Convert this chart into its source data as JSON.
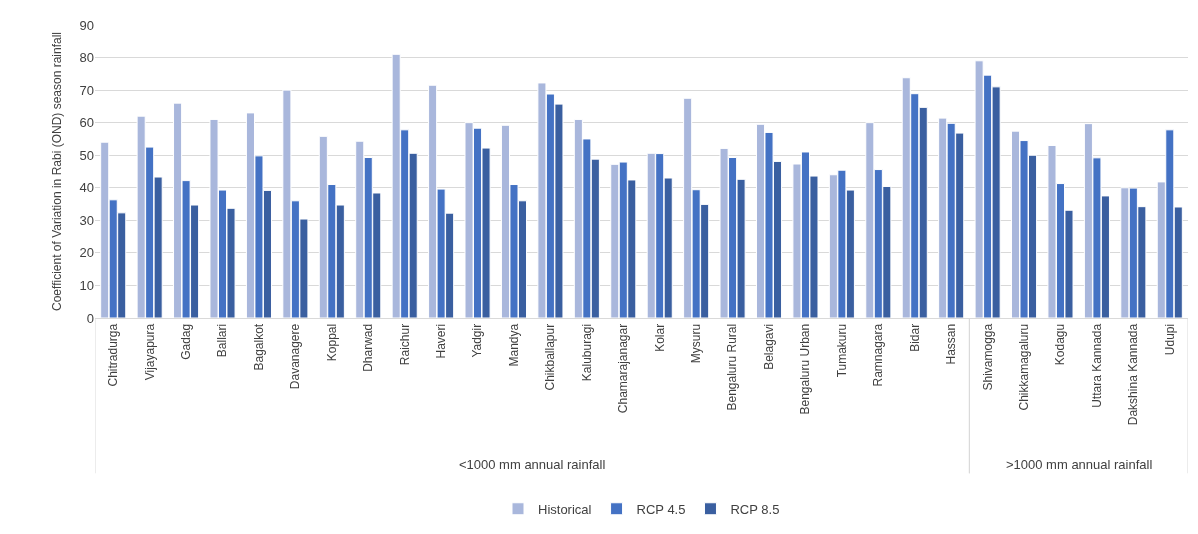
{
  "chart_data": {
    "type": "bar",
    "ylabel": "Coefficient of Variation in Rabi (OND) season rainfall",
    "categories": [
      "Chitradurga",
      "Vijayapura",
      "Gadag",
      "Ballari",
      "Bagalkot",
      "Davanagere",
      "Koppal",
      "Dharwad",
      "Raichur",
      "Haveri",
      "Yadgir",
      "Mandya",
      "Chikballapur",
      "Kaluburagi",
      "Chamarajanagar",
      "Kolar",
      "Mysuru",
      "Bengaluru Rural",
      "Belagavi",
      "Bengaluru Urban",
      "Tumakuru",
      "Ramnagara",
      "Bidar",
      "Hassan",
      "Shivamogga",
      "Chikkamagaluru",
      "Kodagu",
      "Uttara Kannada",
      "Dakshina Kannada",
      "Udupi"
    ],
    "series": [
      {
        "name": "Historical",
        "color": "#a9b7dc",
        "values": [
          54,
          62,
          66,
          61,
          63,
          70,
          55.8,
          54.3,
          81,
          71.5,
          60,
          59.2,
          72.2,
          61,
          47.2,
          50.6,
          67.5,
          52.1,
          59.5,
          47.3,
          44,
          60,
          73.8,
          61.4,
          79,
          57.4,
          53,
          59.7,
          40,
          41.8
        ]
      },
      {
        "name": "RCP 4.5",
        "color": "#4472c4",
        "values": [
          36.3,
          52.5,
          42.2,
          39.3,
          49.8,
          36,
          41,
          49.3,
          57.8,
          39.6,
          58.3,
          41,
          68.8,
          55,
          47.9,
          50.5,
          39.4,
          49.3,
          57,
          51,
          45.4,
          45.6,
          68.9,
          59.8,
          74.6,
          54.5,
          41.3,
          49.2,
          39.9,
          57.8
        ]
      },
      {
        "name": "RCP 8.5",
        "color": "#3a5fa0",
        "values": [
          32.3,
          43.3,
          34.7,
          33.7,
          39.2,
          30.4,
          34.7,
          38.4,
          50.6,
          32.2,
          52.2,
          36,
          65.7,
          48.8,
          42.4,
          43,
          34.9,
          42.6,
          48.1,
          43.6,
          39.3,
          40.4,
          64.7,
          56.8,
          71,
          50,
          33.1,
          37.5,
          34.2,
          34.1
        ]
      }
    ],
    "annotations": [
      "<1000 mm annual rainfall",
      ">1000 mm annual rainfall"
    ],
    "ylim": [
      0,
      90
    ],
    "yticks": [
      0,
      10,
      20,
      30,
      40,
      50,
      60,
      70,
      80,
      90
    ],
    "grid": "y",
    "legend": "bottom"
  }
}
